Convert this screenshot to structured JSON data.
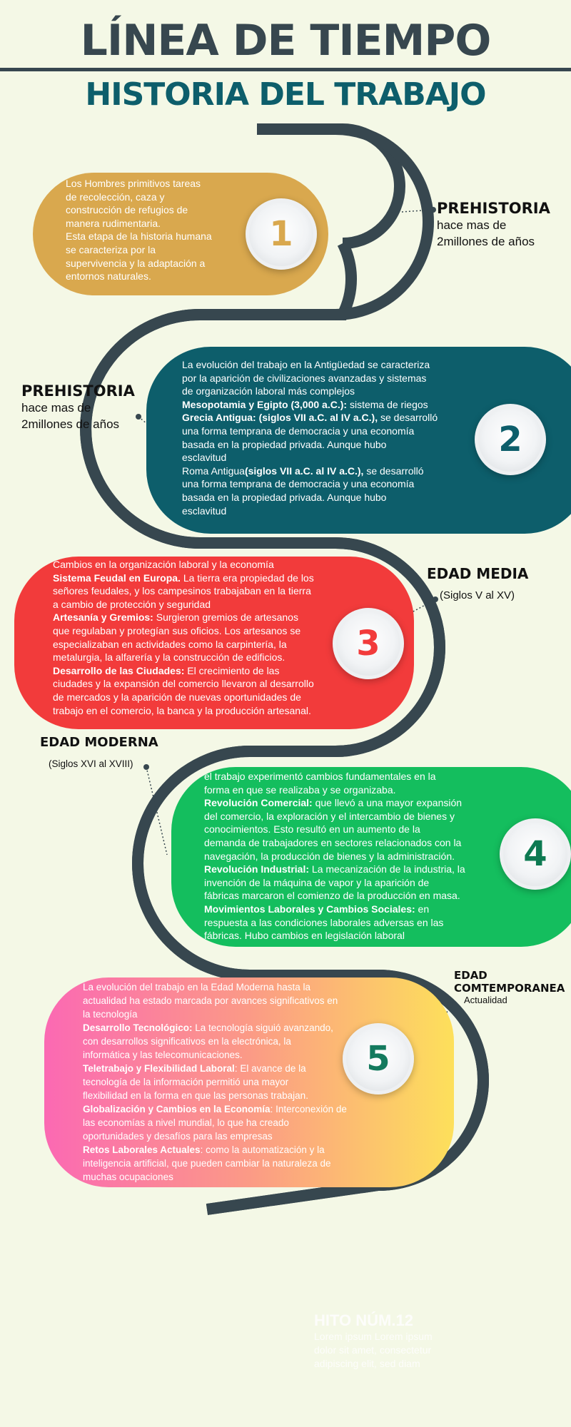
{
  "header": {
    "title": "LÍNEA DE TIEMPO",
    "subtitle": "HISTORIA DEL TRABAJO"
  },
  "colors": {
    "road": "#37474f",
    "card1": "#d9a84e",
    "card2": "#0d5e6b",
    "card3": "#f23b3b",
    "card4": "#14be5e",
    "card5_start": "#fb69b3",
    "card5_end": "#fde05b"
  },
  "eras": [
    {
      "name": "PREHISTORIA",
      "desc_lines": [
        "hace mas de",
        "2millones de años"
      ]
    },
    {
      "name": "PREHISTORIA",
      "desc_lines": [
        "hace mas de",
        "2millones de años"
      ]
    },
    {
      "name": "EDAD MEDIA",
      "desc_lines": [
        "(Siglos V al XV)"
      ]
    },
    {
      "name": "EDAD MODERNA",
      "desc_lines": [
        "(Siglos XVI al XVIII)"
      ]
    },
    {
      "name_lines": [
        "EDAD",
        "COMTEMPORANEA"
      ],
      "desc_lines": [
        "Actualidad"
      ]
    }
  ],
  "cards": [
    {
      "number": "1",
      "lines": [
        "Los Hombres primitivos tareas",
        "de recolección, caza y",
        "construcción de refugios de",
        "manera rudimentaria.",
        "Esta etapa de la historia humana",
        "se caracteriza por la",
        "supervivencia y la adaptación a",
        "entornos naturales."
      ]
    },
    {
      "number": "2",
      "lines": [
        "La evolución del trabajo en la Antigüedad se caracteriza",
        "por la aparición de civilizaciones avanzadas y sistemas",
        "de organización laboral más complejos",
        "Mesopotamia y Egipto (3,000 a.C.): sistema de riegos",
        "Grecia Antigua:  (siglos VII a.C. al IV a.C.), se desarrolló",
        "una forma temprana de democracia y una economía",
        "basada en la propiedad privada. Aunque hubo",
        "esclavitud",
        "Roma  Antigua(siglos VII a.C. al IV a.C.), se desarrolló",
        "una forma temprana de democracia y una economía",
        "basada en la propiedad privada. Aunque hubo",
        "esclavitud"
      ]
    },
    {
      "number": "3",
      "lines": [
        "Cambios en la organización laboral y la economía",
        "Sistema Feudal en Europa. La tierra era propiedad de los",
        "señores feudales, y los campesinos trabajaban en la tierra",
        "a cambio de protección y seguridad",
        "Artesanía y Gremios: Surgieron  gremios de artesanos",
        "que regulaban y protegían sus oficios. Los artesanos se",
        "especializaban en actividades como la carpintería, la",
        "metalurgia, la alfarería y la construcción de edificios.",
        "Desarrollo de las Ciudades: El crecimiento de las",
        "ciudades y la expansión del comercio llevaron al desarrollo",
        "de mercados y la aparición de nuevas oportunidades de",
        "trabajo en el comercio, la banca y la producción artesanal."
      ]
    },
    {
      "number": "4",
      "lines": [
        "el trabajo experimentó cambios fundamentales en la",
        "forma en que se realizaba y se organizaba.",
        "Revolución Comercial: que llevó a una mayor expansión",
        "del comercio, la exploración y el intercambio de bienes y",
        "conocimientos. Esto resultó en un aumento de la",
        "demanda de trabajadores en sectores relacionados con la",
        "navegación, la producción de bienes y la administración.",
        "Revolución Industrial: La mecanización de la industria, la",
        "invención de la máquina de vapor y la aparición de",
        "fábricas marcaron el comienzo de la producción en masa.",
        "Movimientos Laborales y Cambios Sociales: en",
        "respuesta a las condiciones laborales adversas en las",
        "fábricas. Hubo cambios en  legislación laboral"
      ]
    },
    {
      "number": "5",
      "lines": [
        "La evolución del trabajo en la Edad Moderna hasta la",
        "actualidad ha estado marcada por avances significativos en",
        "la tecnología",
        "Desarrollo Tecnológico: La tecnología siguió avanzando,",
        "con desarrollos significativos en la electrónica, la",
        "informática y las telecomunicaciones.",
        "Teletrabajo y Flexibilidad Laboral: El avance de la",
        "tecnología de la información permitió una mayor",
        "flexibilidad en la forma en que las personas trabajan.",
        "Globalización y Cambios en la Economía: Interconexión de",
        "las economías a nivel mundial, lo que ha creado",
        "oportunidades y desafíos para las empresas",
        "Retos Laborales Actuales: como la automatización y la",
        "inteligencia artificial, que pueden cambiar la naturaleza de",
        "muchas ocupaciones"
      ]
    }
  ],
  "hito": {
    "title": "HITO NÚM.12",
    "lines": [
      "Lorem ipsum Lorem ipsum",
      "dolor sit amet, consectetur",
      "adipiscing elit, sed diam"
    ]
  }
}
